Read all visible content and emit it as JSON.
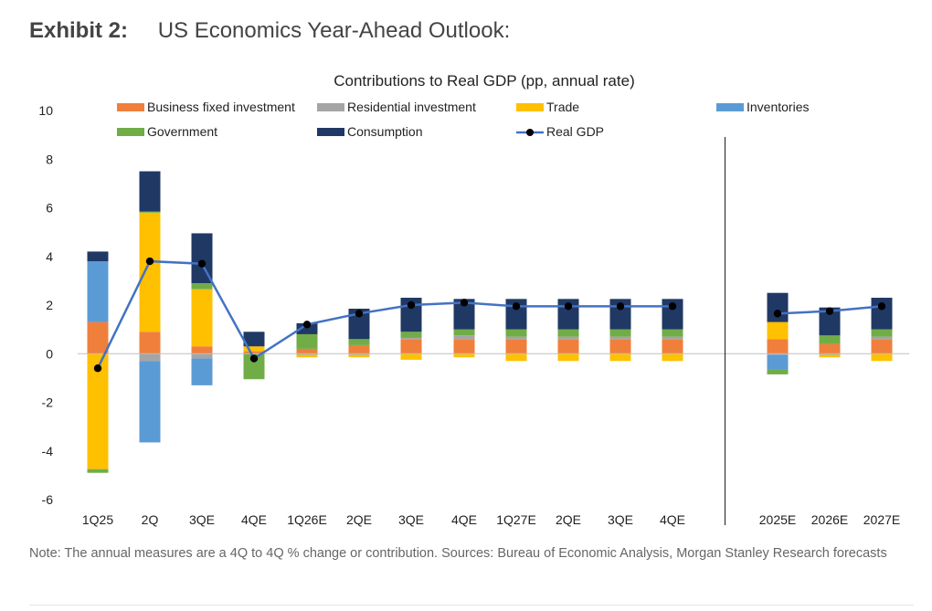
{
  "header": {
    "exhibit_label": "Exhibit 2:",
    "exhibit_title": "US Economics Year-Ahead Outlook:"
  },
  "note": "Note: The annual measures are a 4Q to 4Q % change or contribution. Sources: Bureau of Economic Analysis, Morgan Stanley Research forecasts",
  "chart_data": {
    "type": "bar",
    "stacked": true,
    "title": "Contributions to Real GDP (pp, annual rate)",
    "xlabel": "",
    "ylabel": "",
    "ylim": [
      -6,
      10
    ],
    "yticks": [
      10,
      8,
      6,
      4,
      2,
      0,
      -2,
      -4,
      -6
    ],
    "grid": false,
    "legend_position": "top",
    "categories": [
      "1Q25",
      "2Q",
      "3QE",
      "4QE",
      "1Q26E",
      "2QE",
      "3QE",
      "4QE",
      "1Q27E",
      "2QE",
      "3QE",
      "4QE",
      "2025E",
      "2026E",
      "2027E"
    ],
    "series": [
      {
        "name": "Business fixed investment",
        "color": "#f07f3c",
        "values": [
          1.3,
          0.9,
          0.3,
          0.1,
          0.2,
          0.35,
          0.6,
          0.6,
          0.6,
          0.6,
          0.6,
          0.6,
          0.6,
          0.4,
          0.6
        ]
      },
      {
        "name": "Residential investment",
        "color": "#a5a5a5",
        "values": [
          0.0,
          -0.3,
          -0.2,
          0.0,
          -0.05,
          -0.05,
          0.05,
          0.15,
          0.1,
          0.1,
          0.1,
          0.1,
          -0.05,
          -0.05,
          0.1
        ]
      },
      {
        "name": "Trade",
        "color": "#ffc000",
        "values": [
          -4.75,
          4.9,
          2.35,
          0.2,
          -0.1,
          -0.1,
          -0.25,
          -0.15,
          -0.3,
          -0.3,
          -0.3,
          -0.3,
          0.7,
          -0.1,
          -0.3
        ]
      },
      {
        "name": "Inventories",
        "color": "#5b9bd5",
        "values": [
          2.5,
          -3.35,
          -1.1,
          0.0,
          0.0,
          0.0,
          0.0,
          0.0,
          0.0,
          0.0,
          0.0,
          0.0,
          -0.6,
          0.0,
          0.0
        ]
      },
      {
        "name": "Government",
        "color": "#70ad47",
        "values": [
          -0.15,
          0.05,
          0.25,
          -1.05,
          0.6,
          0.25,
          0.25,
          0.25,
          0.3,
          0.3,
          0.3,
          0.3,
          -0.2,
          0.35,
          0.3
        ]
      },
      {
        "name": "Consumption",
        "color": "#203864",
        "values": [
          0.4,
          1.65,
          2.05,
          0.6,
          0.45,
          1.25,
          1.4,
          1.25,
          1.25,
          1.25,
          1.25,
          1.25,
          1.2,
          1.15,
          1.3
        ]
      }
    ],
    "line_series": {
      "name": "Real GDP",
      "color": "#4472c4",
      "values": [
        -0.6,
        3.8,
        3.7,
        -0.2,
        1.2,
        1.65,
        2.0,
        2.1,
        1.95,
        1.95,
        1.95,
        1.95,
        1.65,
        1.75,
        1.95
      ]
    },
    "divider_after_index": 11
  }
}
